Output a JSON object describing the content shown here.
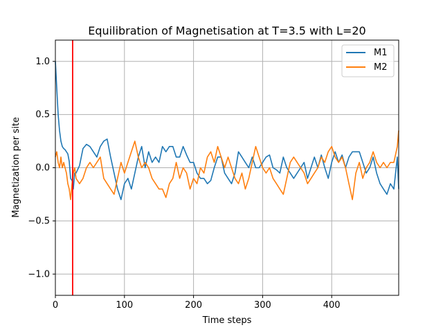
{
  "chart_data": {
    "type": "line",
    "title": "Equilibration of Magnetisation at T=3.5 with L=20",
    "xlabel": "Time steps",
    "ylabel": "Magnetization per site",
    "xlim": [
      0,
      497
    ],
    "ylim": [
      -1.2,
      1.2
    ],
    "xticks": [
      0,
      100,
      200,
      300,
      400
    ],
    "yticks": [
      -1.0,
      -0.5,
      0.0,
      0.5,
      1.0
    ],
    "xtick_labels": [
      "0",
      "100",
      "200",
      "300",
      "400"
    ],
    "ytick_labels": [
      "−1.0",
      "−0.5",
      "0.0",
      "0.5",
      "1.0"
    ],
    "grid": true,
    "legend_position": "top-right",
    "vline": {
      "x": 25,
      "color": "#ff0000"
    },
    "series": [
      {
        "name": "M1",
        "color": "#1f77b4",
        "x": [
          0,
          2,
          4,
          6,
          8,
          10,
          12,
          14,
          16,
          18,
          20,
          22,
          24,
          26,
          28,
          30,
          35,
          40,
          45,
          50,
          55,
          60,
          65,
          70,
          75,
          80,
          85,
          90,
          95,
          100,
          105,
          110,
          115,
          120,
          125,
          130,
          135,
          140,
          145,
          150,
          155,
          160,
          165,
          170,
          175,
          180,
          185,
          190,
          195,
          200,
          205,
          210,
          215,
          220,
          225,
          230,
          235,
          240,
          245,
          250,
          255,
          260,
          265,
          270,
          275,
          280,
          285,
          290,
          295,
          300,
          305,
          310,
          315,
          320,
          325,
          330,
          335,
          340,
          345,
          350,
          355,
          360,
          365,
          370,
          375,
          380,
          385,
          390,
          395,
          400,
          405,
          410,
          415,
          420,
          425,
          430,
          435,
          440,
          445,
          450,
          455,
          460,
          465,
          470,
          475,
          480,
          485,
          490,
          495,
          497
        ],
        "values": [
          1.0,
          0.75,
          0.5,
          0.35,
          0.25,
          0.2,
          0.18,
          0.17,
          0.15,
          0.13,
          0.06,
          -0.1,
          -0.12,
          -0.2,
          -0.05,
          -0.05,
          0.02,
          0.18,
          0.22,
          0.2,
          0.15,
          0.1,
          0.2,
          0.25,
          0.27,
          0.1,
          -0.05,
          -0.2,
          -0.3,
          -0.15,
          -0.1,
          -0.2,
          -0.05,
          0.1,
          0.2,
          0.0,
          0.15,
          0.05,
          0.1,
          0.05,
          0.2,
          0.15,
          0.2,
          0.2,
          0.1,
          0.1,
          0.2,
          0.12,
          0.05,
          0.05,
          -0.05,
          -0.1,
          -0.1,
          -0.15,
          -0.12,
          0.0,
          0.1,
          0.1,
          -0.05,
          -0.1,
          -0.15,
          -0.05,
          0.15,
          0.1,
          0.05,
          0.0,
          0.1,
          0.0,
          0.0,
          0.05,
          0.1,
          0.12,
          0.0,
          -0.02,
          -0.05,
          0.1,
          0.0,
          -0.05,
          -0.1,
          -0.05,
          0.0,
          0.05,
          -0.1,
          0.0,
          0.1,
          0.0,
          0.12,
          0.0,
          -0.1,
          0.05,
          0.15,
          0.05,
          0.12,
          0.0,
          0.1,
          0.15,
          0.15,
          0.15,
          0.05,
          -0.05,
          0.0,
          0.1,
          -0.05,
          -0.15,
          -0.2,
          -0.25,
          -0.15,
          -0.2,
          0.1,
          -0.2
        ]
      },
      {
        "name": "M2",
        "color": "#ff7f0e",
        "x": [
          0,
          2,
          4,
          6,
          8,
          10,
          12,
          14,
          16,
          18,
          20,
          22,
          24,
          26,
          28,
          30,
          35,
          40,
          45,
          50,
          55,
          60,
          65,
          70,
          75,
          80,
          85,
          90,
          95,
          100,
          105,
          110,
          115,
          120,
          125,
          130,
          135,
          140,
          145,
          150,
          155,
          160,
          165,
          170,
          175,
          180,
          185,
          190,
          195,
          200,
          205,
          210,
          215,
          220,
          225,
          230,
          235,
          240,
          245,
          250,
          255,
          260,
          265,
          270,
          275,
          280,
          285,
          290,
          295,
          300,
          305,
          310,
          315,
          320,
          325,
          330,
          335,
          340,
          345,
          350,
          355,
          360,
          365,
          370,
          375,
          380,
          385,
          390,
          395,
          400,
          405,
          410,
          415,
          420,
          425,
          430,
          435,
          440,
          445,
          450,
          455,
          460,
          465,
          470,
          475,
          480,
          485,
          490,
          495,
          497
        ],
        "values": [
          0.1,
          0.15,
          0.05,
          0.0,
          0.1,
          0.0,
          0.05,
          0.0,
          -0.05,
          -0.15,
          -0.2,
          -0.3,
          -0.15,
          -0.05,
          0.0,
          -0.1,
          -0.15,
          -0.1,
          0.0,
          0.05,
          0.0,
          0.05,
          0.1,
          -0.1,
          -0.15,
          -0.2,
          -0.25,
          -0.1,
          0.05,
          -0.05,
          0.05,
          0.15,
          0.25,
          0.1,
          0.0,
          0.05,
          0.0,
          -0.1,
          -0.15,
          -0.2,
          -0.2,
          -0.28,
          -0.15,
          -0.1,
          0.05,
          -0.1,
          0.0,
          -0.05,
          -0.2,
          -0.1,
          -0.15,
          0.0,
          -0.05,
          0.1,
          0.15,
          0.05,
          0.2,
          0.1,
          0.0,
          0.1,
          0.0,
          -0.1,
          -0.15,
          -0.05,
          -0.2,
          -0.1,
          0.05,
          0.2,
          0.1,
          0.0,
          -0.05,
          0.0,
          -0.1,
          -0.15,
          -0.2,
          -0.25,
          -0.1,
          0.05,
          0.1,
          0.05,
          0.0,
          -0.05,
          -0.15,
          -0.1,
          -0.05,
          0.0,
          0.1,
          0.05,
          0.15,
          0.2,
          0.1,
          0.05,
          0.1,
          0.0,
          -0.15,
          -0.3,
          -0.05,
          0.05,
          -0.1,
          0.0,
          0.05,
          0.15,
          0.05,
          0.0,
          0.05,
          0.0,
          0.05,
          0.05,
          0.2,
          0.35
        ]
      }
    ]
  }
}
